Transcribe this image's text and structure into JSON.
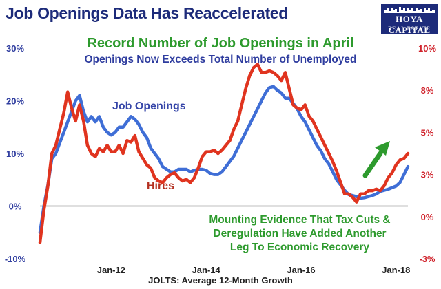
{
  "header": {
    "title": "Job Openings Data Has Reaccelerated",
    "subtitle_green": "Record Number of Job Openings in April",
    "subtitle_blue": "Openings Now Exceeds Total Number of Unemployed"
  },
  "logo": {
    "line1": "HOYA CAPITAL",
    "line2": "REAL ESTATE"
  },
  "annotation": "Mounting Evidence That Tax Cuts &\nDeregulation Have Added Another\nLeg To Economic Recovery",
  "colors": {
    "openings": "#3f6ed6",
    "hires": "#e0341f",
    "left_axis": "#2f3d9f",
    "right_axis": "#d0212a",
    "arrow": "#2d9a2d"
  },
  "chart_data": {
    "type": "line",
    "xlabel": "JOLTS: Average 12-Month Growth",
    "x_ticks": [
      "Jan-12",
      "Jan-14",
      "Jan-16",
      "Jan-18"
    ],
    "y_left": {
      "ticks": [
        "-10%",
        "0%",
        "10%",
        "20%",
        "30%"
      ],
      "range": [
        -10,
        30
      ]
    },
    "y_right": {
      "ticks": [
        "-3%",
        "0%",
        "3%",
        "5%",
        "8%",
        "10%"
      ],
      "range": [
        -3,
        10
      ]
    },
    "grid": false,
    "x_months": [
      "2010-07",
      "2010-08",
      "2010-09",
      "2010-10",
      "2010-11",
      "2010-12",
      "2011-01",
      "2011-02",
      "2011-03",
      "2011-04",
      "2011-05",
      "2011-06",
      "2011-07",
      "2011-08",
      "2011-09",
      "2011-10",
      "2011-11",
      "2011-12",
      "2012-01",
      "2012-02",
      "2012-03",
      "2012-04",
      "2012-05",
      "2012-06",
      "2012-07",
      "2012-08",
      "2012-09",
      "2012-10",
      "2012-11",
      "2012-12",
      "2013-01",
      "2013-02",
      "2013-03",
      "2013-04",
      "2013-05",
      "2013-06",
      "2013-07",
      "2013-08",
      "2013-09",
      "2013-10",
      "2013-11",
      "2013-12",
      "2014-01",
      "2014-02",
      "2014-03",
      "2014-04",
      "2014-05",
      "2014-06",
      "2014-07",
      "2014-08",
      "2014-09",
      "2014-10",
      "2014-11",
      "2014-12",
      "2015-01",
      "2015-02",
      "2015-03",
      "2015-04",
      "2015-05",
      "2015-06",
      "2015-07",
      "2015-08",
      "2015-09",
      "2015-10",
      "2015-11",
      "2015-12",
      "2016-01",
      "2016-02",
      "2016-03",
      "2016-04",
      "2016-05",
      "2016-06",
      "2016-07",
      "2016-08",
      "2016-09",
      "2016-10",
      "2016-11",
      "2016-12",
      "2017-01",
      "2017-02",
      "2017-03",
      "2017-04",
      "2017-05",
      "2017-06",
      "2017-07",
      "2017-08",
      "2017-09",
      "2017-10",
      "2017-11",
      "2017-12",
      "2018-01",
      "2018-02",
      "2018-03",
      "2018-04"
    ],
    "series": [
      {
        "name": "Job Openings",
        "axis": "left",
        "values": [
          -5,
          0,
          4,
          9,
          10,
          12,
          14,
          16,
          18,
          20,
          21,
          18,
          16,
          17,
          16,
          17,
          15,
          14,
          13.5,
          14,
          15,
          15,
          16,
          17,
          16.5,
          15.5,
          14,
          13,
          11,
          10,
          9,
          7.5,
          7,
          6.5,
          6.5,
          7,
          7,
          7,
          6.5,
          6.8,
          7,
          7,
          6.8,
          6.2,
          6,
          6,
          6.5,
          7.5,
          8.5,
          9.5,
          11,
          12.5,
          14,
          15.5,
          17,
          18.5,
          20,
          21.5,
          22.5,
          22.7,
          22,
          21.5,
          20.5,
          20.5,
          19.5,
          18.5,
          17,
          16,
          14.5,
          13,
          11.5,
          10.5,
          9,
          8,
          6.5,
          5,
          4,
          3,
          2.2,
          2,
          1.8,
          1.5,
          1.6,
          1.8,
          2,
          2.3,
          2.8,
          3,
          3.2,
          3.5,
          3.8,
          4.5,
          6,
          7.5
        ]
      },
      {
        "name": "Hires",
        "axis": "right",
        "values": [
          -2,
          0,
          1.5,
          3.5,
          4,
          5,
          6,
          7.3,
          6.3,
          5.5,
          6.5,
          5.5,
          4,
          3.5,
          3.3,
          3.8,
          3.6,
          4,
          3.6,
          3.6,
          4,
          3.5,
          4.3,
          4.2,
          4.6,
          3.6,
          3.2,
          2.8,
          2.6,
          2,
          1.8,
          1.7,
          2,
          2.2,
          2.3,
          2,
          1.8,
          1.9,
          1.7,
          2,
          2.6,
          3.3,
          3.6,
          3.6,
          3.7,
          3.5,
          3.7,
          4,
          4.3,
          5,
          5.5,
          6.5,
          7.5,
          8.3,
          8.8,
          9,
          8.5,
          8.5,
          8.6,
          8.5,
          8.3,
          8,
          8.5,
          7.5,
          6.5,
          6.3,
          6.2,
          6.5,
          5.8,
          5.5,
          5,
          4.5,
          4,
          3.5,
          3,
          2.4,
          1.7,
          1,
          1,
          0.8,
          0.5,
          1,
          1,
          1.2,
          1.2,
          1.3,
          1.2,
          1.5,
          2,
          2.3,
          2.8,
          3.1,
          3.2,
          3.5
        ]
      }
    ],
    "series_labels": {
      "openings": "Job Openings",
      "hires": "Hires"
    }
  }
}
